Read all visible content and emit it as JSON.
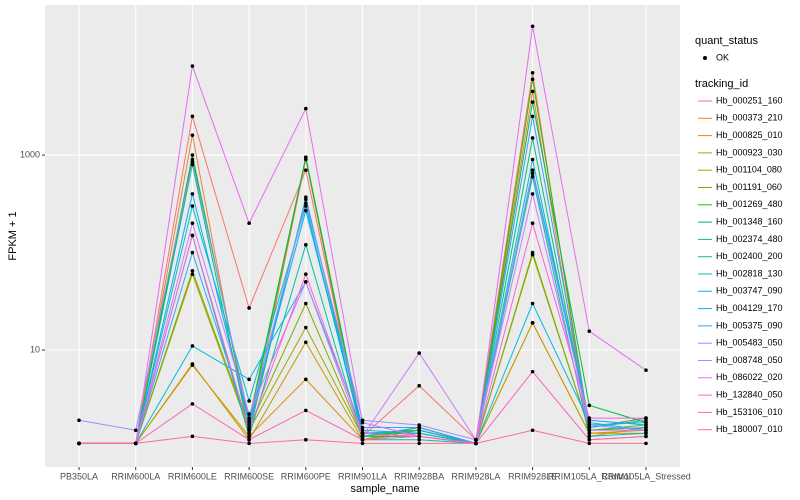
{
  "chart_data": {
    "type": "line",
    "x_label": "sample_name",
    "y_label": "FPKM + 1",
    "log_y": true,
    "grid": true,
    "ylim": [
      0.63,
      34700
    ],
    "yticks": [
      10,
      1000
    ],
    "categories": [
      "PB350LA",
      "RRIM600LA",
      "RRIM600LE",
      "RRIM600SE",
      "RRIM600PE",
      "RRIM901LA",
      "RRIM928BA",
      "RRIM928LA",
      "RRIM928LE",
      "RRIM105LA_Control",
      "RRIM105LA_Stressed"
    ],
    "point_legend_title": "quant_status",
    "point_legend_label": "OK",
    "point_color": "#000000",
    "legend_title": "tracking_id",
    "series": [
      {
        "name": "Hb_000251_160",
        "color": "#F8766D",
        "values": [
          1.1,
          1.1,
          2500,
          27,
          700,
          1.3,
          4.3,
          1.2,
          7000,
          1.3,
          1.6
        ]
      },
      {
        "name": "Hb_000373_210",
        "color": "#EA8331",
        "values": [
          1.1,
          1.1,
          1600,
          1.4,
          900,
          1.2,
          1.4,
          1.1,
          4500,
          1.2,
          1.3
        ]
      },
      {
        "name": "Hb_000825_010",
        "color": "#D89000",
        "values": [
          1.1,
          1.1,
          7,
          1.3,
          5,
          1.2,
          1.6,
          1.1,
          19,
          1.4,
          1.5
        ]
      },
      {
        "name": "Hb_000923_030",
        "color": "#C09B00",
        "values": [
          1.1,
          1.1,
          7.2,
          1.2,
          12,
          1.2,
          1.5,
          1.1,
          19,
          1.4,
          1.4
        ]
      },
      {
        "name": "Hb_001104_080",
        "color": "#A3A500",
        "values": [
          1.1,
          1.1,
          60,
          1.5,
          17,
          1.3,
          1.5,
          1.1,
          95,
          1.5,
          1.6
        ]
      },
      {
        "name": "Hb_001191_060",
        "color": "#7CAE00",
        "values": [
          1.1,
          1.1,
          65,
          1.6,
          30,
          1.3,
          1.6,
          1.1,
          100,
          1.5,
          1.7
        ]
      },
      {
        "name": "Hb_001269_480",
        "color": "#39B600",
        "values": [
          1.1,
          1.1,
          900,
          1.9,
          950,
          1.3,
          1.5,
          1.1,
          6000,
          1.6,
          2.0
        ]
      },
      {
        "name": "Hb_001348_160",
        "color": "#00BB4E",
        "values": [
          1.1,
          1.1,
          1000,
          1.7,
          950,
          1.4,
          1.4,
          1.1,
          3500,
          2.7,
          1.8
        ]
      },
      {
        "name": "Hb_002374_480",
        "color": "#00BF7D",
        "values": [
          1.1,
          1.1,
          800,
          1.4,
          370,
          1.3,
          1.3,
          1.1,
          1500,
          1.5,
          1.6
        ]
      },
      {
        "name": "Hb_002400_200",
        "color": "#00C1A3",
        "values": [
          1.1,
          1.1,
          150,
          1.3,
          120,
          1.2,
          1.2,
          1.1,
          600,
          1.3,
          1.4
        ]
      },
      {
        "name": "Hb_002818_130",
        "color": "#00BFC4",
        "values": [
          1.1,
          1.1,
          300,
          3.0,
          300,
          1.3,
          1.6,
          1.1,
          900,
          1.6,
          1.9
        ]
      },
      {
        "name": "Hb_003747_090",
        "color": "#00BAE0",
        "values": [
          1.1,
          1.1,
          11,
          5,
          50,
          1.5,
          1.4,
          1.1,
          30,
          1.8,
          1.5
        ]
      },
      {
        "name": "Hb_004129_170",
        "color": "#00B0F6",
        "values": [
          1.1,
          1.1,
          400,
          1.8,
          270,
          1.4,
          1.5,
          1.1,
          700,
          1.9,
          1.7
        ]
      },
      {
        "name": "Hb_005375_090",
        "color": "#35A2FF",
        "values": [
          1.1,
          1.1,
          100,
          1.6,
          350,
          1.6,
          1.6,
          1.1,
          2500,
          1.7,
          1.8
        ]
      },
      {
        "name": "Hb_005483_050",
        "color": "#9590FF",
        "values": [
          1.9,
          1.5,
          850,
          2.0,
          320,
          1.9,
          1.7,
          1.2,
          650,
          1.7,
          1.5
        ]
      },
      {
        "name": "Hb_008748_050",
        "color": "#C77CFF",
        "values": [
          1.1,
          1.1,
          200,
          2.2,
          50,
          1.3,
          9.3,
          1.2,
          400,
          1.5,
          1.5
        ]
      },
      {
        "name": "Hb_086022_020",
        "color": "#E76BF3",
        "values": [
          1.1,
          1.1,
          8200,
          200,
          3000,
          1.8,
          1.3,
          1.1,
          21000,
          15.6,
          6.2
        ]
      },
      {
        "name": "Hb_132840_050",
        "color": "#FA62DB",
        "values": [
          1.1,
          1.1,
          150,
          1.5,
          60,
          1.4,
          1.3,
          1.1,
          200,
          2.0,
          2.0
        ]
      },
      {
        "name": "Hb_153106_010",
        "color": "#FF62BC",
        "values": [
          1.1,
          1.1,
          2.8,
          1.2,
          2.4,
          1.2,
          1.3,
          1.1,
          6,
          1.2,
          1.3
        ]
      },
      {
        "name": "Hb_180007_010",
        "color": "#FF6C91",
        "values": [
          1.1,
          1.1,
          1.3,
          1.1,
          1.2,
          1.1,
          1.1,
          1.1,
          1.5,
          1.1,
          1.1
        ]
      }
    ]
  }
}
